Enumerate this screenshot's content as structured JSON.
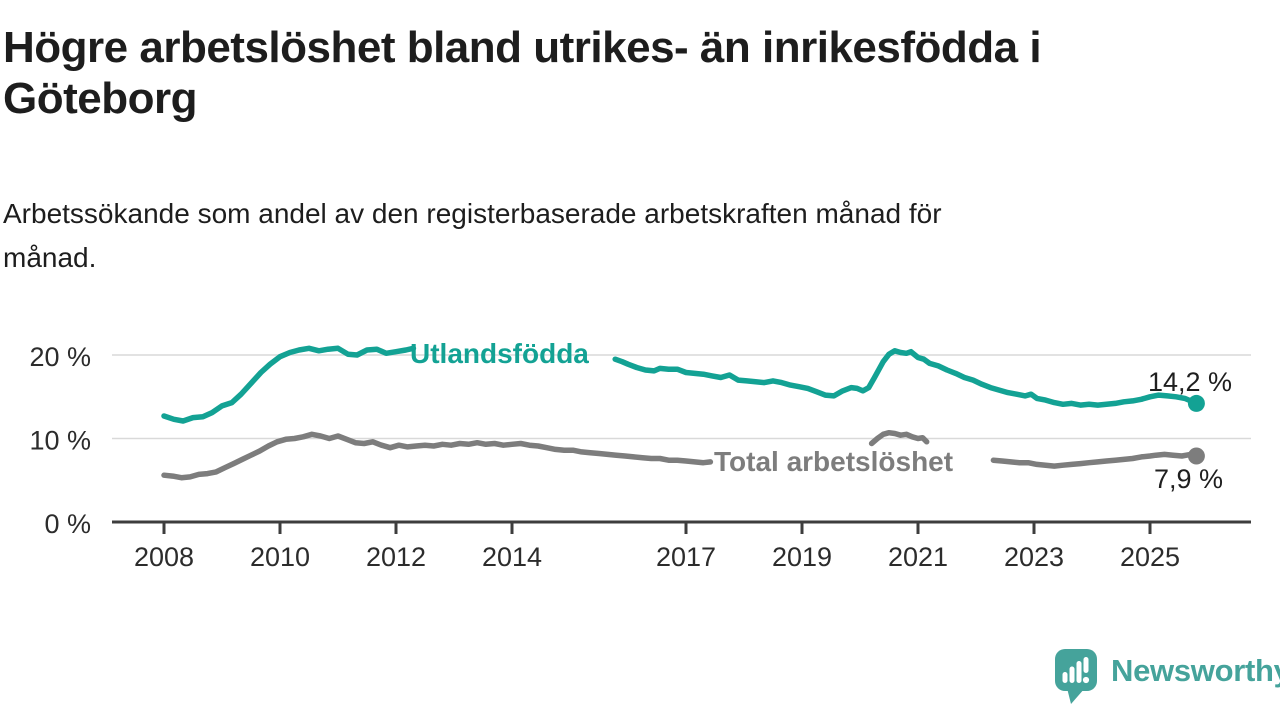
{
  "header": {
    "title_lines": [
      "Högre arbetslöshet bland utrikes- än inrikesfödda i",
      "Göteborg"
    ],
    "subtitle_lines": [
      "Arbetssökande som andel av den registerbaserade arbetskraften månad för",
      "månad."
    ]
  },
  "footer": {
    "brand": "Newsworthy",
    "logo_icon": "newsworthy-speech-bubble-bar-chart-icon",
    "brand_color": "#45a39b"
  },
  "chart_data": {
    "type": "line",
    "title": "Högre arbetslöshet bland utrikes- än inrikesfödda i Göteborg",
    "subtitle": "Arbetssökande som andel av den registerbaserade arbetskraften månad för månad.",
    "unit": "percent of registered labour force",
    "grid": "horizontal-only",
    "legend_position": "inline-labels-on-lines",
    "colors": {
      "grid": "#d9d9d9",
      "axis": "#3d3d3d",
      "tick_text": "#2c2c2c",
      "value_text": "#1f1f1f"
    },
    "x_axis": {
      "ticks": [
        2008,
        2010,
        2012,
        2014,
        2017,
        2019,
        2021,
        2023,
        2025
      ],
      "range": [
        2007.1,
        2026.7
      ]
    },
    "y_axis": {
      "ticks": [
        {
          "value": 0,
          "label": "0 %"
        },
        {
          "value": 10,
          "label": "10 %"
        },
        {
          "value": 20,
          "label": "20 %"
        }
      ],
      "gridlines": [
        10,
        20
      ],
      "range": [
        0,
        23.5
      ]
    },
    "series": [
      {
        "name": "Utlandsfödda",
        "color": "#13a294",
        "end_label": "14,2 %",
        "end_value": 14.2,
        "segments": [
          [
            [
              2008.0,
              12.7
            ],
            [
              2008.17,
              12.3
            ],
            [
              2008.33,
              12.1
            ],
            [
              2008.5,
              12.5
            ],
            [
              2008.67,
              12.6
            ],
            [
              2008.83,
              13.1
            ],
            [
              2009.0,
              13.9
            ],
            [
              2009.17,
              14.3
            ],
            [
              2009.33,
              15.3
            ],
            [
              2009.5,
              16.6
            ],
            [
              2009.67,
              17.9
            ],
            [
              2009.83,
              18.9
            ],
            [
              2010.0,
              19.8
            ],
            [
              2010.17,
              20.3
            ],
            [
              2010.33,
              20.6
            ],
            [
              2010.5,
              20.8
            ],
            [
              2010.67,
              20.5
            ],
            [
              2010.83,
              20.7
            ],
            [
              2011.0,
              20.8
            ],
            [
              2011.17,
              20.1
            ],
            [
              2011.33,
              20.0
            ],
            [
              2011.5,
              20.6
            ],
            [
              2011.67,
              20.7
            ],
            [
              2011.83,
              20.2
            ],
            [
              2012.0,
              20.4
            ],
            [
              2012.17,
              20.6
            ],
            [
              2012.3,
              20.8
            ]
          ],
          [
            [
              2015.78,
              19.5
            ],
            [
              2015.9,
              19.2
            ],
            [
              2016.0,
              18.9
            ],
            [
              2016.15,
              18.5
            ],
            [
              2016.3,
              18.2
            ],
            [
              2016.45,
              18.1
            ],
            [
              2016.55,
              18.4
            ],
            [
              2016.7,
              18.3
            ],
            [
              2016.85,
              18.3
            ],
            [
              2017.0,
              17.9
            ],
            [
              2017.15,
              17.8
            ],
            [
              2017.3,
              17.7
            ],
            [
              2017.45,
              17.5
            ],
            [
              2017.6,
              17.3
            ],
            [
              2017.75,
              17.6
            ],
            [
              2017.9,
              17.0
            ],
            [
              2018.05,
              16.9
            ],
            [
              2018.2,
              16.8
            ],
            [
              2018.35,
              16.7
            ],
            [
              2018.5,
              16.9
            ],
            [
              2018.65,
              16.7
            ],
            [
              2018.8,
              16.4
            ],
            [
              2018.95,
              16.2
            ],
            [
              2019.1,
              16.0
            ],
            [
              2019.25,
              15.6
            ],
            [
              2019.4,
              15.2
            ],
            [
              2019.55,
              15.1
            ],
            [
              2019.7,
              15.7
            ],
            [
              2019.85,
              16.1
            ],
            [
              2019.95,
              16.0
            ],
            [
              2020.05,
              15.7
            ],
            [
              2020.15,
              16.1
            ],
            [
              2020.25,
              17.3
            ],
            [
              2020.4,
              19.2
            ],
            [
              2020.5,
              20.1
            ],
            [
              2020.6,
              20.5
            ],
            [
              2020.7,
              20.3
            ],
            [
              2020.8,
              20.2
            ],
            [
              2020.88,
              20.4
            ],
            [
              2021.0,
              19.7
            ],
            [
              2021.1,
              19.5
            ],
            [
              2021.2,
              19.0
            ],
            [
              2021.35,
              18.7
            ],
            [
              2021.5,
              18.2
            ],
            [
              2021.65,
              17.8
            ],
            [
              2021.8,
              17.3
            ],
            [
              2021.95,
              17.0
            ],
            [
              2022.1,
              16.5
            ],
            [
              2022.25,
              16.1
            ],
            [
              2022.4,
              15.8
            ],
            [
              2022.55,
              15.5
            ],
            [
              2022.7,
              15.3
            ],
            [
              2022.85,
              15.1
            ],
            [
              2022.95,
              15.3
            ],
            [
              2023.05,
              14.8
            ],
            [
              2023.2,
              14.6
            ],
            [
              2023.35,
              14.3
            ],
            [
              2023.5,
              14.1
            ],
            [
              2023.65,
              14.2
            ],
            [
              2023.8,
              14.0
            ],
            [
              2023.95,
              14.1
            ],
            [
              2024.1,
              14.0
            ],
            [
              2024.25,
              14.1
            ],
            [
              2024.4,
              14.2
            ],
            [
              2024.55,
              14.4
            ],
            [
              2024.7,
              14.5
            ],
            [
              2024.85,
              14.7
            ],
            [
              2025.0,
              15.0
            ],
            [
              2025.15,
              15.2
            ],
            [
              2025.3,
              15.1
            ],
            [
              2025.45,
              15.0
            ],
            [
              2025.6,
              14.8
            ],
            [
              2025.7,
              14.5
            ],
            [
              2025.8,
              14.2
            ]
          ]
        ]
      },
      {
        "name": "Total arbetslöshet",
        "color": "#7d7d7d",
        "end_label": "7,9 %",
        "end_value": 7.9,
        "segments": [
          [
            [
              2008.0,
              5.6
            ],
            [
              2008.15,
              5.5
            ],
            [
              2008.3,
              5.3
            ],
            [
              2008.45,
              5.4
            ],
            [
              2008.6,
              5.7
            ],
            [
              2008.75,
              5.8
            ],
            [
              2008.9,
              6.0
            ],
            [
              2009.05,
              6.5
            ],
            [
              2009.2,
              7.0
            ],
            [
              2009.35,
              7.5
            ],
            [
              2009.5,
              8.0
            ],
            [
              2009.65,
              8.5
            ],
            [
              2009.8,
              9.1
            ],
            [
              2009.95,
              9.6
            ],
            [
              2010.1,
              9.9
            ],
            [
              2010.25,
              10.0
            ],
            [
              2010.4,
              10.2
            ],
            [
              2010.55,
              10.5
            ],
            [
              2010.7,
              10.3
            ],
            [
              2010.85,
              10.0
            ],
            [
              2011.0,
              10.3
            ],
            [
              2011.15,
              9.9
            ],
            [
              2011.3,
              9.5
            ],
            [
              2011.45,
              9.4
            ],
            [
              2011.6,
              9.6
            ],
            [
              2011.75,
              9.2
            ],
            [
              2011.9,
              8.9
            ],
            [
              2012.05,
              9.2
            ],
            [
              2012.2,
              9.0
            ],
            [
              2012.35,
              9.1
            ],
            [
              2012.5,
              9.2
            ],
            [
              2012.65,
              9.1
            ],
            [
              2012.8,
              9.3
            ],
            [
              2012.95,
              9.2
            ],
            [
              2013.1,
              9.4
            ],
            [
              2013.25,
              9.3
            ],
            [
              2013.4,
              9.5
            ],
            [
              2013.55,
              9.3
            ],
            [
              2013.7,
              9.4
            ],
            [
              2013.85,
              9.2
            ],
            [
              2014.0,
              9.3
            ],
            [
              2014.15,
              9.4
            ],
            [
              2014.3,
              9.2
            ],
            [
              2014.45,
              9.1
            ],
            [
              2014.6,
              8.9
            ],
            [
              2014.75,
              8.7
            ],
            [
              2014.9,
              8.6
            ],
            [
              2015.05,
              8.6
            ],
            [
              2015.2,
              8.4
            ],
            [
              2015.35,
              8.3
            ],
            [
              2015.5,
              8.2
            ],
            [
              2015.65,
              8.1
            ],
            [
              2015.8,
              8.0
            ],
            [
              2015.95,
              7.9
            ],
            [
              2016.1,
              7.8
            ],
            [
              2016.25,
              7.7
            ],
            [
              2016.4,
              7.6
            ],
            [
              2016.55,
              7.6
            ],
            [
              2016.7,
              7.4
            ],
            [
              2016.85,
              7.4
            ],
            [
              2017.0,
              7.3
            ],
            [
              2017.15,
              7.2
            ],
            [
              2017.3,
              7.1
            ],
            [
              2017.42,
              7.2
            ]
          ],
          [
            [
              2020.2,
              9.4
            ],
            [
              2020.3,
              10.0
            ],
            [
              2020.4,
              10.5
            ],
            [
              2020.5,
              10.7
            ],
            [
              2020.6,
              10.6
            ],
            [
              2020.7,
              10.4
            ],
            [
              2020.8,
              10.5
            ],
            [
              2020.9,
              10.2
            ],
            [
              2021.0,
              10.0
            ],
            [
              2021.08,
              10.1
            ],
            [
              2021.15,
              9.6
            ]
          ],
          [
            [
              2022.3,
              7.4
            ],
            [
              2022.45,
              7.3
            ],
            [
              2022.6,
              7.2
            ],
            [
              2022.75,
              7.1
            ],
            [
              2022.9,
              7.1
            ],
            [
              2023.05,
              6.9
            ],
            [
              2023.2,
              6.8
            ],
            [
              2023.35,
              6.7
            ],
            [
              2023.5,
              6.8
            ],
            [
              2023.65,
              6.9
            ],
            [
              2023.8,
              7.0
            ],
            [
              2023.95,
              7.1
            ],
            [
              2024.1,
              7.2
            ],
            [
              2024.25,
              7.3
            ],
            [
              2024.4,
              7.4
            ],
            [
              2024.55,
              7.5
            ],
            [
              2024.7,
              7.6
            ],
            [
              2024.85,
              7.8
            ],
            [
              2025.0,
              7.9
            ],
            [
              2025.1,
              8.0
            ],
            [
              2025.25,
              8.1
            ],
            [
              2025.4,
              8.0
            ],
            [
              2025.55,
              7.9
            ],
            [
              2025.7,
              8.1
            ],
            [
              2025.8,
              7.9
            ]
          ]
        ]
      }
    ]
  }
}
